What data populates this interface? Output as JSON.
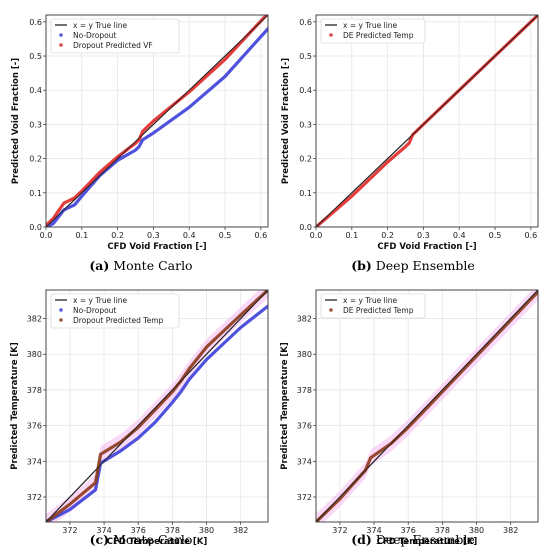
{
  "figure": {
    "captions": [
      {
        "tag": "(a)",
        "text": " Monte Carlo"
      },
      {
        "tag": "(b)",
        "text": " Deep Ensemble"
      },
      {
        "tag": "(c)",
        "text": " Monte Carlo"
      },
      {
        "tag": "(d)",
        "text": " Deep Ensemble"
      }
    ]
  },
  "colors": {
    "true_line": "#222222",
    "no_dropout": "#3b3fd8",
    "predicted": "#e02828",
    "predicted_temp": "#8b3a1a",
    "uncertainty_band": "#f4a8f0",
    "grid": "#e6e6e6"
  },
  "chart_data": [
    {
      "type": "line",
      "xlabel": "CFD Void Fraction [-]",
      "ylabel": "Predicted Void Fraction [-]",
      "xlim": [
        0,
        0.62
      ],
      "ylim": [
        0,
        0.62
      ],
      "xticks": [
        "0.0",
        "0.1",
        "0.2",
        "0.3",
        "0.4",
        "0.5",
        "0.6"
      ],
      "yticks": [
        "0.0",
        "0.1",
        "0.2",
        "0.3",
        "0.4",
        "0.5",
        "0.6"
      ],
      "grid": true,
      "legend": {
        "position": "top-left",
        "entries": [
          "x = y True line",
          "No-Dropout",
          "Dropout Predicted VF"
        ]
      },
      "series": [
        {
          "name": "x = y True line",
          "x": [
            0,
            0.62
          ],
          "y": [
            0,
            0.62
          ]
        },
        {
          "name": "No-Dropout",
          "x": [
            0,
            0.02,
            0.05,
            0.08,
            0.1,
            0.15,
            0.2,
            0.25,
            0.26,
            0.27,
            0.3,
            0.4,
            0.5,
            0.62
          ],
          "y": [
            0,
            0.01,
            0.05,
            0.065,
            0.09,
            0.15,
            0.195,
            0.225,
            0.235,
            0.255,
            0.275,
            0.35,
            0.44,
            0.58
          ]
        },
        {
          "name": "Dropout Predicted VF",
          "x": [
            0,
            0.02,
            0.05,
            0.08,
            0.1,
            0.15,
            0.2,
            0.25,
            0.26,
            0.27,
            0.3,
            0.4,
            0.5,
            0.62
          ],
          "y": [
            0.005,
            0.025,
            0.07,
            0.085,
            0.105,
            0.16,
            0.205,
            0.245,
            0.255,
            0.28,
            0.31,
            0.395,
            0.49,
            0.625
          ]
        }
      ]
    },
    {
      "type": "line",
      "xlabel": "CFD Void Fraction [-]",
      "ylabel": "Predicted Void Fraction [-]",
      "xlim": [
        0,
        0.62
      ],
      "ylim": [
        0,
        0.62
      ],
      "xticks": [
        "0.0",
        "0.1",
        "0.2",
        "0.3",
        "0.4",
        "0.5",
        "0.6"
      ],
      "yticks": [
        "0.0",
        "0.1",
        "0.2",
        "0.3",
        "0.4",
        "0.5",
        "0.6"
      ],
      "grid": true,
      "legend": {
        "position": "top-left",
        "entries": [
          "x = y True line",
          "DE Predicted Temp"
        ]
      },
      "series": [
        {
          "name": "x = y True line",
          "x": [
            0,
            0.62
          ],
          "y": [
            0,
            0.62
          ]
        },
        {
          "name": "DE Predicted Temp",
          "x": [
            0,
            0.05,
            0.1,
            0.15,
            0.2,
            0.25,
            0.26,
            0.27,
            0.3,
            0.4,
            0.5,
            0.62
          ],
          "y": [
            0,
            0.045,
            0.09,
            0.14,
            0.19,
            0.235,
            0.245,
            0.27,
            0.3,
            0.4,
            0.5,
            0.62
          ]
        }
      ]
    },
    {
      "type": "line",
      "xlabel": "CFD Temperature [K]",
      "ylabel": "Predicted Temperature [K]",
      "xlim": [
        370.6,
        383.6
      ],
      "ylim": [
        370.6,
        383.6
      ],
      "xticks": [
        "372",
        "374",
        "376",
        "378",
        "380",
        "382"
      ],
      "yticks": [
        "372",
        "374",
        "376",
        "378",
        "380",
        "382"
      ],
      "grid": true,
      "legend": {
        "position": "top-left",
        "entries": [
          "x = y True line",
          "No-Dropout",
          "Dropout Predicted Temp"
        ]
      },
      "series": [
        {
          "name": "x = y True line",
          "x": [
            370.6,
            383.6
          ],
          "y": [
            370.6,
            383.6
          ]
        },
        {
          "name": "No-Dropout",
          "x": [
            370.6,
            372,
            373.5,
            373.8,
            375,
            376,
            377,
            378,
            378.5,
            379,
            380,
            381,
            382,
            383.6
          ],
          "y": [
            370.6,
            371.3,
            372.4,
            373.9,
            374.6,
            375.3,
            376.2,
            377.3,
            377.9,
            378.6,
            379.7,
            380.6,
            381.5,
            382.7
          ]
        },
        {
          "name": "Dropout Predicted Temp",
          "x": [
            370.6,
            372,
            373.5,
            373.8,
            375,
            376,
            377,
            378,
            378.5,
            379,
            380,
            381,
            382,
            383.6
          ],
          "y": [
            370.6,
            371.6,
            372.8,
            374.4,
            375.1,
            375.9,
            376.9,
            377.9,
            378.5,
            379.2,
            380.4,
            381.3,
            382.2,
            383.6
          ]
        }
      ]
    },
    {
      "type": "line",
      "xlabel": "CFD Temperature [K]",
      "ylabel": "Predicted Temperature [K]",
      "xlim": [
        370.6,
        383.6
      ],
      "ylim": [
        370.6,
        383.6
      ],
      "xticks": [
        "372",
        "374",
        "376",
        "378",
        "380",
        "382"
      ],
      "yticks": [
        "372",
        "374",
        "376",
        "378",
        "380",
        "382"
      ],
      "grid": true,
      "legend": {
        "position": "top-left",
        "entries": [
          "x = y True line",
          "DE Predicted Temp"
        ]
      },
      "series": [
        {
          "name": "x = y True line",
          "x": [
            370.6,
            383.6
          ],
          "y": [
            370.6,
            383.6
          ]
        },
        {
          "name": "DE Predicted Temp",
          "x": [
            370.6,
            372,
            373.5,
            373.8,
            375,
            376,
            377,
            378,
            379,
            380,
            381,
            382,
            383.6
          ],
          "y": [
            370.6,
            371.9,
            373.5,
            374.2,
            375.0,
            375.9,
            376.9,
            377.9,
            378.9,
            379.9,
            380.9,
            381.9,
            383.5
          ]
        }
      ]
    }
  ]
}
